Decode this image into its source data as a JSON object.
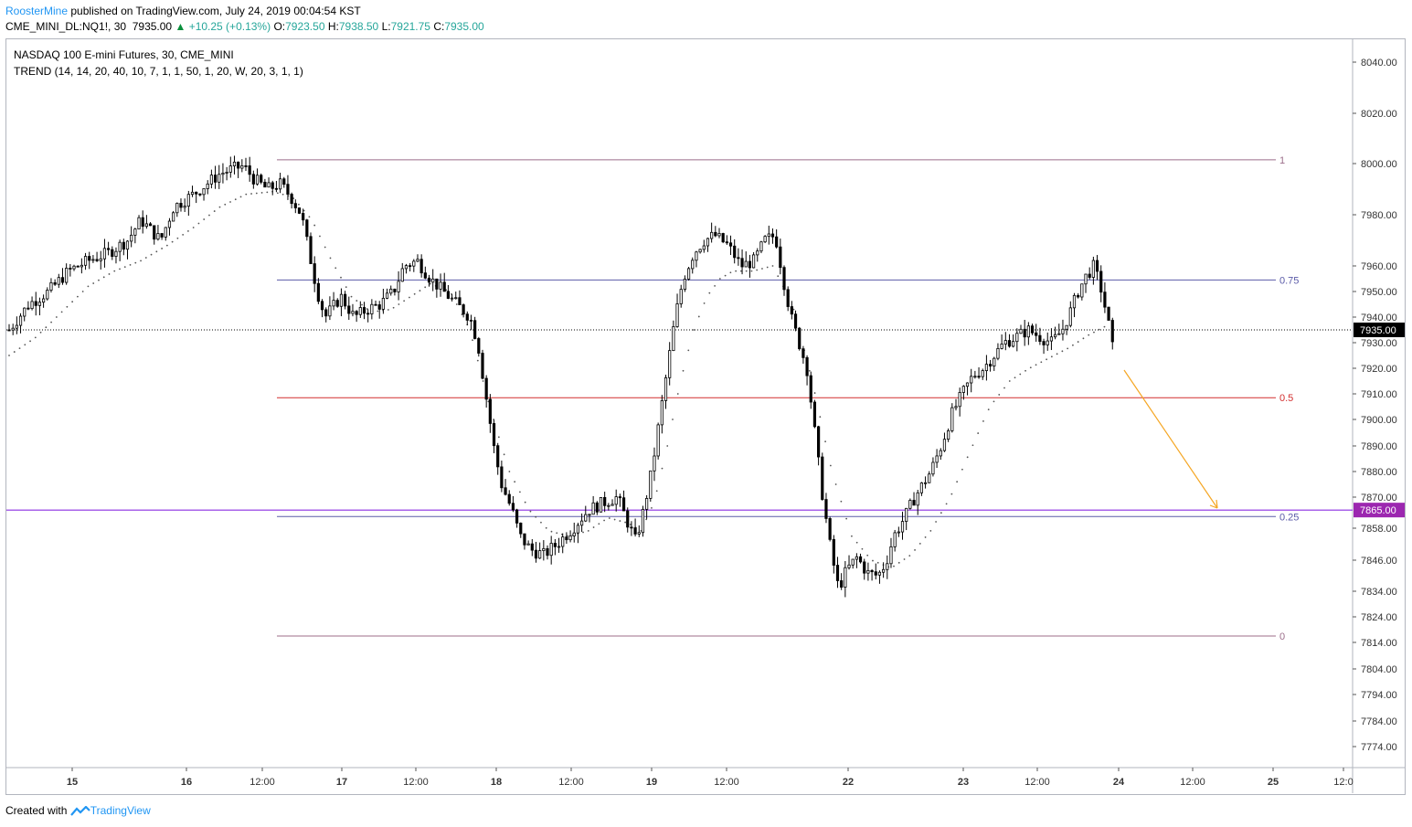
{
  "header": {
    "author": "RoosterMine",
    "published": "published on TradingView.com, July 24, 2019 00:04:54 KST",
    "symbol": "CME_MINI_DL:NQ1!, 30",
    "last": "7935.00",
    "change": "+10.25 (+0.13%)",
    "o_label": "O:",
    "o": "7923.50",
    "h_label": "H:",
    "h": "7938.50",
    "l_label": "L:",
    "l": "7921.75",
    "c_label": "C:",
    "c": "7935.00"
  },
  "legend": {
    "title": "NASDAQ 100 E-mini Futures, 30, CME_MINI",
    "indicator": "TREND (14, 14, 20, 40, 10, 7, 1, 1, 50, 1, 20, W, 20, 3, 1, 1)"
  },
  "footer": {
    "created_with": "Created with",
    "brand": "TradingView"
  },
  "colors": {
    "candle": "#000000",
    "fib_1": "#9c6e8a",
    "fib_075": "#5b5ba8",
    "fib_05": "#d32f2f",
    "fib_025": "#5b5ba8",
    "fib_0": "#9c6e8a",
    "support_line": "#8a2be2",
    "support_label_bg": "#9c27b0",
    "arrow": "#f5a623",
    "last_price_bg": "#000000"
  },
  "chart_data": {
    "type": "candlestick",
    "x_tick_labels": [
      "15",
      "16",
      "12:00",
      "17",
      "12:00",
      "18",
      "12:00",
      "19",
      "12:00",
      "22",
      "23",
      "12:00",
      "24",
      "12:00",
      "25",
      "12:0"
    ],
    "y_tick_labels": [
      "8040.00",
      "8020.00",
      "8000.00",
      "7980.00",
      "7960.00",
      "7950.00",
      "7940.00",
      "7930.00",
      "7920.00",
      "7910.00",
      "7900.00",
      "7890.00",
      "7880.00",
      "7870.00",
      "7858.00",
      "7846.00",
      "7834.00",
      "7824.00",
      "7814.00",
      "7804.00",
      "7794.00",
      "7784.00",
      "7774.00"
    ],
    "fib_levels": [
      {
        "label": "1",
        "price": 8001.5
      },
      {
        "label": "0.75",
        "price": 7954.5
      },
      {
        "label": "0.5",
        "price": 7908.5
      },
      {
        "label": "0.25",
        "price": 7862.5
      },
      {
        "label": "0",
        "price": 7816.5
      }
    ],
    "last_price_label": "7935.00",
    "last_price": 7935.0,
    "support_label": "7865.00",
    "support_price": 7865.0,
    "price_path": [
      [
        0,
        7935
      ],
      [
        15,
        7945
      ],
      [
        30,
        7950
      ],
      [
        45,
        7958
      ],
      [
        60,
        7962
      ],
      [
        75,
        7965
      ],
      [
        90,
        7970
      ],
      [
        100,
        7978
      ],
      [
        115,
        7970
      ],
      [
        125,
        7983
      ],
      [
        140,
        7988
      ],
      [
        150,
        7992
      ],
      [
        160,
        7996
      ],
      [
        170,
        7998
      ],
      [
        178,
        7999
      ],
      [
        186,
        7994
      ],
      [
        196,
        7990
      ],
      [
        206,
        7992
      ],
      [
        214,
        7987
      ],
      [
        222,
        7980
      ],
      [
        228,
        7965
      ],
      [
        234,
        7950
      ],
      [
        240,
        7940
      ],
      [
        252,
        7948
      ],
      [
        262,
        7940
      ],
      [
        272,
        7943
      ],
      [
        282,
        7945
      ],
      [
        292,
        7950
      ],
      [
        300,
        7960
      ],
      [
        310,
        7962
      ],
      [
        320,
        7955
      ],
      [
        330,
        7950
      ],
      [
        340,
        7945
      ],
      [
        350,
        7940
      ],
      [
        356,
        7930
      ],
      [
        362,
        7910
      ],
      [
        368,
        7890
      ],
      [
        374,
        7875
      ],
      [
        382,
        7865
      ],
      [
        388,
        7855
      ],
      [
        396,
        7850
      ],
      [
        406,
        7848
      ],
      [
        416,
        7852
      ],
      [
        428,
        7858
      ],
      [
        440,
        7865
      ],
      [
        452,
        7868
      ],
      [
        462,
        7870
      ],
      [
        470,
        7860
      ],
      [
        476,
        7853
      ],
      [
        482,
        7865
      ],
      [
        488,
        7880
      ],
      [
        494,
        7900
      ],
      [
        500,
        7920
      ],
      [
        506,
        7940
      ],
      [
        512,
        7955
      ],
      [
        520,
        7965
      ],
      [
        528,
        7970
      ],
      [
        536,
        7972
      ],
      [
        546,
        7968
      ],
      [
        556,
        7960
      ],
      [
        566,
        7962
      ],
      [
        574,
        7970
      ],
      [
        582,
        7972
      ],
      [
        588,
        7955
      ],
      [
        594,
        7940
      ],
      [
        600,
        7930
      ],
      [
        606,
        7920
      ],
      [
        612,
        7895
      ],
      [
        618,
        7870
      ],
      [
        624,
        7850
      ],
      [
        630,
        7835
      ],
      [
        636,
        7842
      ],
      [
        644,
        7847
      ],
      [
        652,
        7841
      ],
      [
        660,
        7840
      ],
      [
        666,
        7845
      ],
      [
        672,
        7855
      ],
      [
        680,
        7862
      ],
      [
        688,
        7870
      ],
      [
        694,
        7875
      ],
      [
        700,
        7880
      ],
      [
        708,
        7890
      ],
      [
        716,
        7902
      ],
      [
        724,
        7910
      ],
      [
        732,
        7917
      ],
      [
        740,
        7920
      ],
      [
        748,
        7925
      ],
      [
        756,
        7930
      ],
      [
        764,
        7932
      ],
      [
        774,
        7935
      ],
      [
        784,
        7932
      ],
      [
        792,
        7930
      ],
      [
        800,
        7935
      ],
      [
        806,
        7942
      ],
      [
        812,
        7950
      ],
      [
        818,
        7956
      ],
      [
        824,
        7960
      ],
      [
        830,
        7950
      ],
      [
        836,
        7935
      ],
      [
        840,
        7922
      ]
    ],
    "trend_path": [
      [
        0,
        7925
      ],
      [
        20,
        7932
      ],
      [
        40,
        7942
      ],
      [
        60,
        7952
      ],
      [
        80,
        7958
      ],
      [
        100,
        7962
      ],
      [
        120,
        7968
      ],
      [
        140,
        7975
      ],
      [
        160,
        7983
      ],
      [
        180,
        7988
      ],
      [
        200,
        7989
      ],
      [
        215,
        7987
      ],
      [
        230,
        7978
      ],
      [
        245,
        7962
      ],
      [
        260,
        7948
      ],
      [
        275,
        7942
      ],
      [
        290,
        7943
      ],
      [
        305,
        7948
      ],
      [
        320,
        7953
      ],
      [
        335,
        7950
      ],
      [
        350,
        7935
      ],
      [
        365,
        7905
      ],
      [
        380,
        7880
      ],
      [
        395,
        7865
      ],
      [
        410,
        7857
      ],
      [
        425,
        7855
      ],
      [
        440,
        7857
      ],
      [
        455,
        7862
      ],
      [
        470,
        7860
      ],
      [
        480,
        7857
      ],
      [
        490,
        7868
      ],
      [
        500,
        7890
      ],
      [
        510,
        7915
      ],
      [
        520,
        7935
      ],
      [
        530,
        7948
      ],
      [
        540,
        7955
      ],
      [
        550,
        7958
      ],
      [
        565,
        7958
      ],
      [
        580,
        7960
      ],
      [
        595,
        7945
      ],
      [
        610,
        7915
      ],
      [
        625,
        7880
      ],
      [
        640,
        7855
      ],
      [
        655,
        7846
      ],
      [
        670,
        7843
      ],
      [
        685,
        7848
      ],
      [
        700,
        7857
      ],
      [
        715,
        7870
      ],
      [
        730,
        7888
      ],
      [
        745,
        7905
      ],
      [
        760,
        7915
      ],
      [
        775,
        7920
      ],
      [
        790,
        7924
      ],
      [
        805,
        7928
      ],
      [
        820,
        7933
      ],
      [
        835,
        7937
      ]
    ],
    "x_range": [
      0,
      840
    ],
    "arrow": {
      "from": [
        843,
        7918
      ],
      "to": [
        895,
        7866
      ]
    }
  }
}
